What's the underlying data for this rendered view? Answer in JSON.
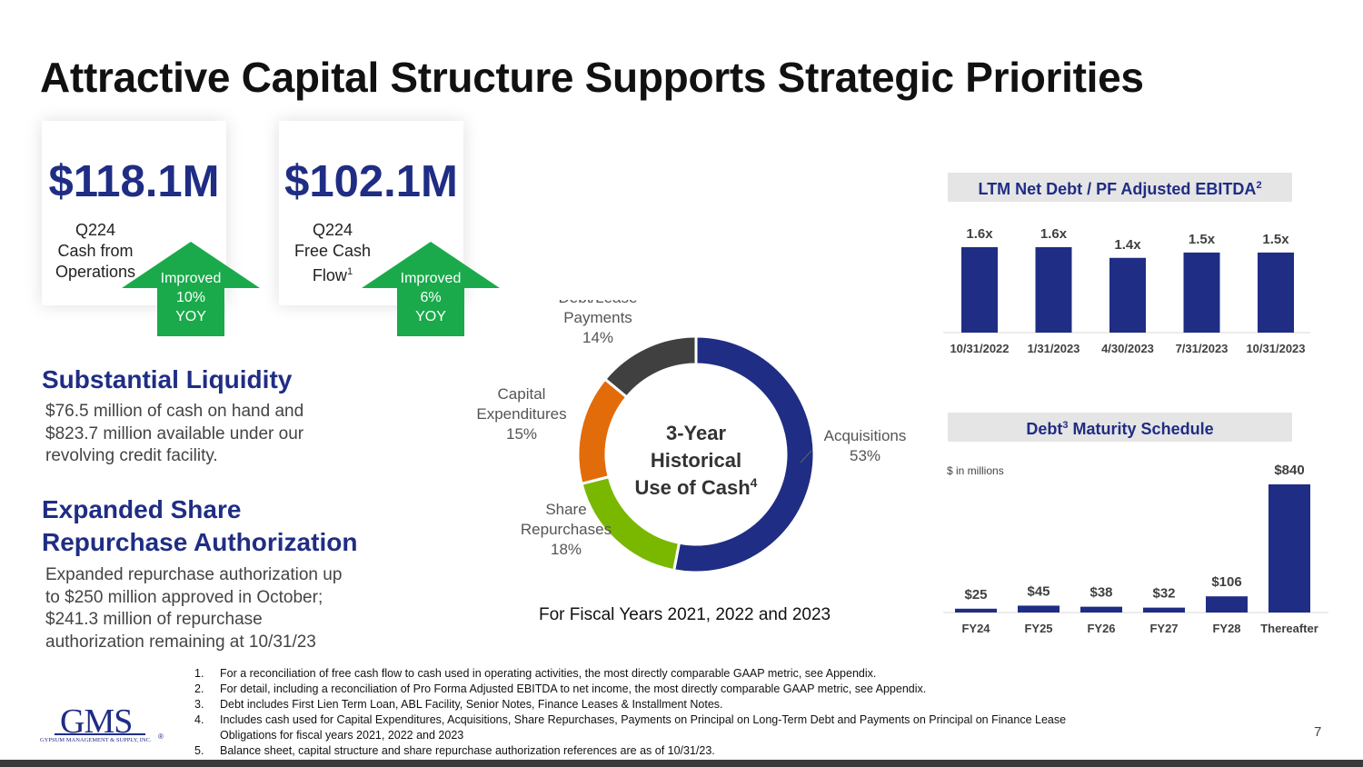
{
  "title": "Attractive Capital Structure Supports Strategic Priorities",
  "cards": [
    {
      "value": "$118.1M",
      "caption": [
        "Q224",
        "Cash from",
        "Operations"
      ],
      "badge": [
        "Improved",
        "10%",
        "YOY"
      ]
    },
    {
      "value": "$102.1M",
      "caption": [
        "Q224",
        "Free Cash",
        "Flow"
      ],
      "caption_sup": "1",
      "badge": [
        "Improved",
        "6%",
        "YOY"
      ]
    }
  ],
  "liquidity": {
    "heading": "Substantial Liquidity",
    "lines": [
      "$76.5 million of cash on hand and",
      "$823.7 million available under our",
      "revolving credit facility."
    ]
  },
  "repurchase": {
    "heading": [
      "Expanded Share",
      "Repurchase Authorization"
    ],
    "lines": [
      "Expanded repurchase authorization up",
      "to $250 million approved in October;",
      "$241.3 million of repurchase",
      "authorization remaining at 10/31/23"
    ]
  },
  "donut_caption": "For Fiscal Years 2021, 2022 and 2023",
  "footnotes": [
    {
      "n": "1.",
      "text": "For a reconciliation of free cash flow to cash used in operating activities, the most directly comparable GAAP metric, see Appendix."
    },
    {
      "n": "2.",
      "text": "For detail, including a reconciliation of Pro Forma Adjusted EBITDA to net income, the most directly comparable GAAP metric, see Appendix."
    },
    {
      "n": "3.",
      "text": "Debt includes First Lien Term Loan, ABL Facility, Senior Notes, Finance Leases & Installment Notes."
    },
    {
      "n": "4.",
      "text": "Includes cash used for Capital Expenditures, Acquisitions, Share Repurchases, Payments on Principal on Long-Term Debt and Payments on Principal on Finance Lease",
      "text2": "Obligations for fiscal years 2021, 2022 and 2023"
    },
    {
      "n": "5.",
      "text": "Balance sheet, capital structure and share repurchase authorization references are as of 10/31/23."
    }
  ],
  "logo": {
    "name": "GMS",
    "tagline": "GYPSUM MANAGEMENT & SUPPLY, INC.",
    "mark": "®"
  },
  "page_number": "7",
  "colors": {
    "navy": "#1f2d84",
    "green": "#1aaa4b",
    "orange": "#e36c0a",
    "lime": "#7ab800",
    "dark": "#404040",
    "panel": "#e5e5e5"
  },
  "chart_data": [
    {
      "type": "pie",
      "variant": "donut",
      "center_title": [
        "3-Year",
        "Historical",
        "Use of Cash"
      ],
      "center_sup": "4",
      "slices": [
        {
          "label": "Acquisitions",
          "value": 53,
          "value_label": "53%",
          "color": "#1f2d84"
        },
        {
          "label": "Share Repurchases",
          "value": 18,
          "value_label": "18%",
          "color": "#7ab800"
        },
        {
          "label": "Capital Expenditures",
          "value": 15,
          "value_label": "15%",
          "color": "#e36c0a"
        },
        {
          "label": "Debt/Lease Payments",
          "value": 14,
          "value_label": "14%",
          "color": "#404040"
        }
      ]
    },
    {
      "type": "bar",
      "title": "LTM Net Debt / PF Adjusted EBITDA",
      "title_sup": "2",
      "categories": [
        "10/31/2022",
        "1/31/2023",
        "4/30/2023",
        "7/31/2023",
        "10/31/2023"
      ],
      "values": [
        1.6,
        1.6,
        1.4,
        1.5,
        1.5
      ],
      "value_labels": [
        "1.6x",
        "1.6x",
        "1.4x",
        "1.5x",
        "1.5x"
      ],
      "color": "#1f2d84"
    },
    {
      "type": "bar",
      "title_pre": "Debt",
      "title_sup": "3",
      "title_post": " Maturity Schedule",
      "unit_note": "$ in millions",
      "categories": [
        "FY24",
        "FY25",
        "FY26",
        "FY27",
        "FY28",
        "Thereafter"
      ],
      "values": [
        25,
        45,
        38,
        32,
        106,
        840
      ],
      "value_labels": [
        "$25",
        "$45",
        "$38",
        "$32",
        "$106",
        "$840"
      ],
      "color": "#1f2d84"
    }
  ]
}
